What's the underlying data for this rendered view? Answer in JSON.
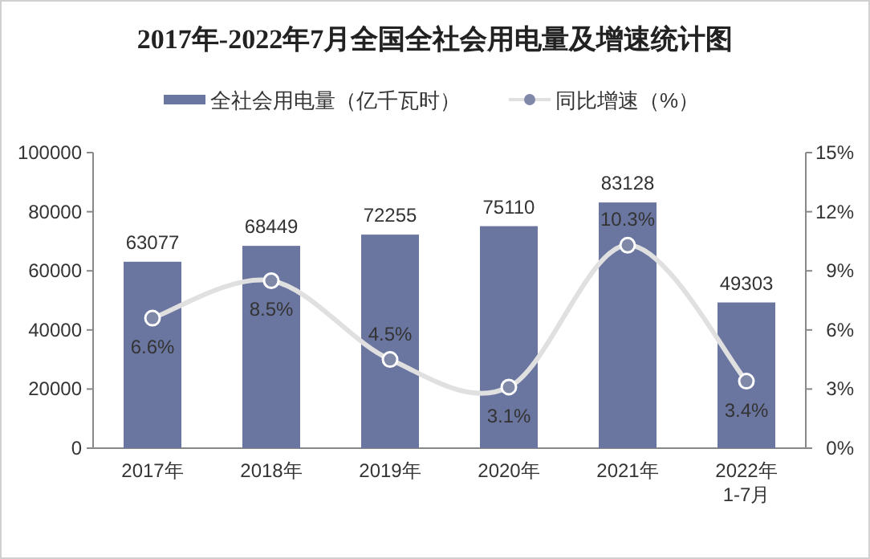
{
  "chart_data": {
    "type": "bar",
    "title": "2017年-2022年7月全国全社会用电量及增速统计图",
    "categories": [
      "2017年",
      "2018年",
      "2019年",
      "2020年",
      "2021年",
      "2022年1-7月"
    ],
    "series": [
      {
        "name": "全社会用电量（亿千瓦时）",
        "color": "#6b76a0",
        "values": [
          63077,
          68449,
          72255,
          75110,
          83128,
          49303
        ]
      },
      {
        "name": "同比增速（%）",
        "type": "line",
        "axis": "y2",
        "color": "#e0e0e0",
        "marker": "circle",
        "values": [
          6.6,
          8.5,
          4.5,
          3.1,
          10.3,
          3.4
        ],
        "value_labels": [
          "6.6%",
          "8.5%",
          "4.5%",
          "3.1%",
          "10.3%",
          "3.4%"
        ]
      }
    ],
    "ylim": [
      0,
      100000
    ],
    "yticks": [
      0,
      20000,
      40000,
      60000,
      80000,
      100000
    ],
    "y2lim": [
      0,
      15
    ],
    "y2ticks": [
      {
        "value": 0,
        "label": "0%"
      },
      {
        "value": 3,
        "label": "3%"
      },
      {
        "value": 6,
        "label": "6%"
      },
      {
        "value": 9,
        "label": "9%"
      },
      {
        "value": 12,
        "label": "12%"
      },
      {
        "value": 15,
        "label": "15%"
      }
    ],
    "data_labels": true,
    "legend": "top",
    "grid": false
  }
}
